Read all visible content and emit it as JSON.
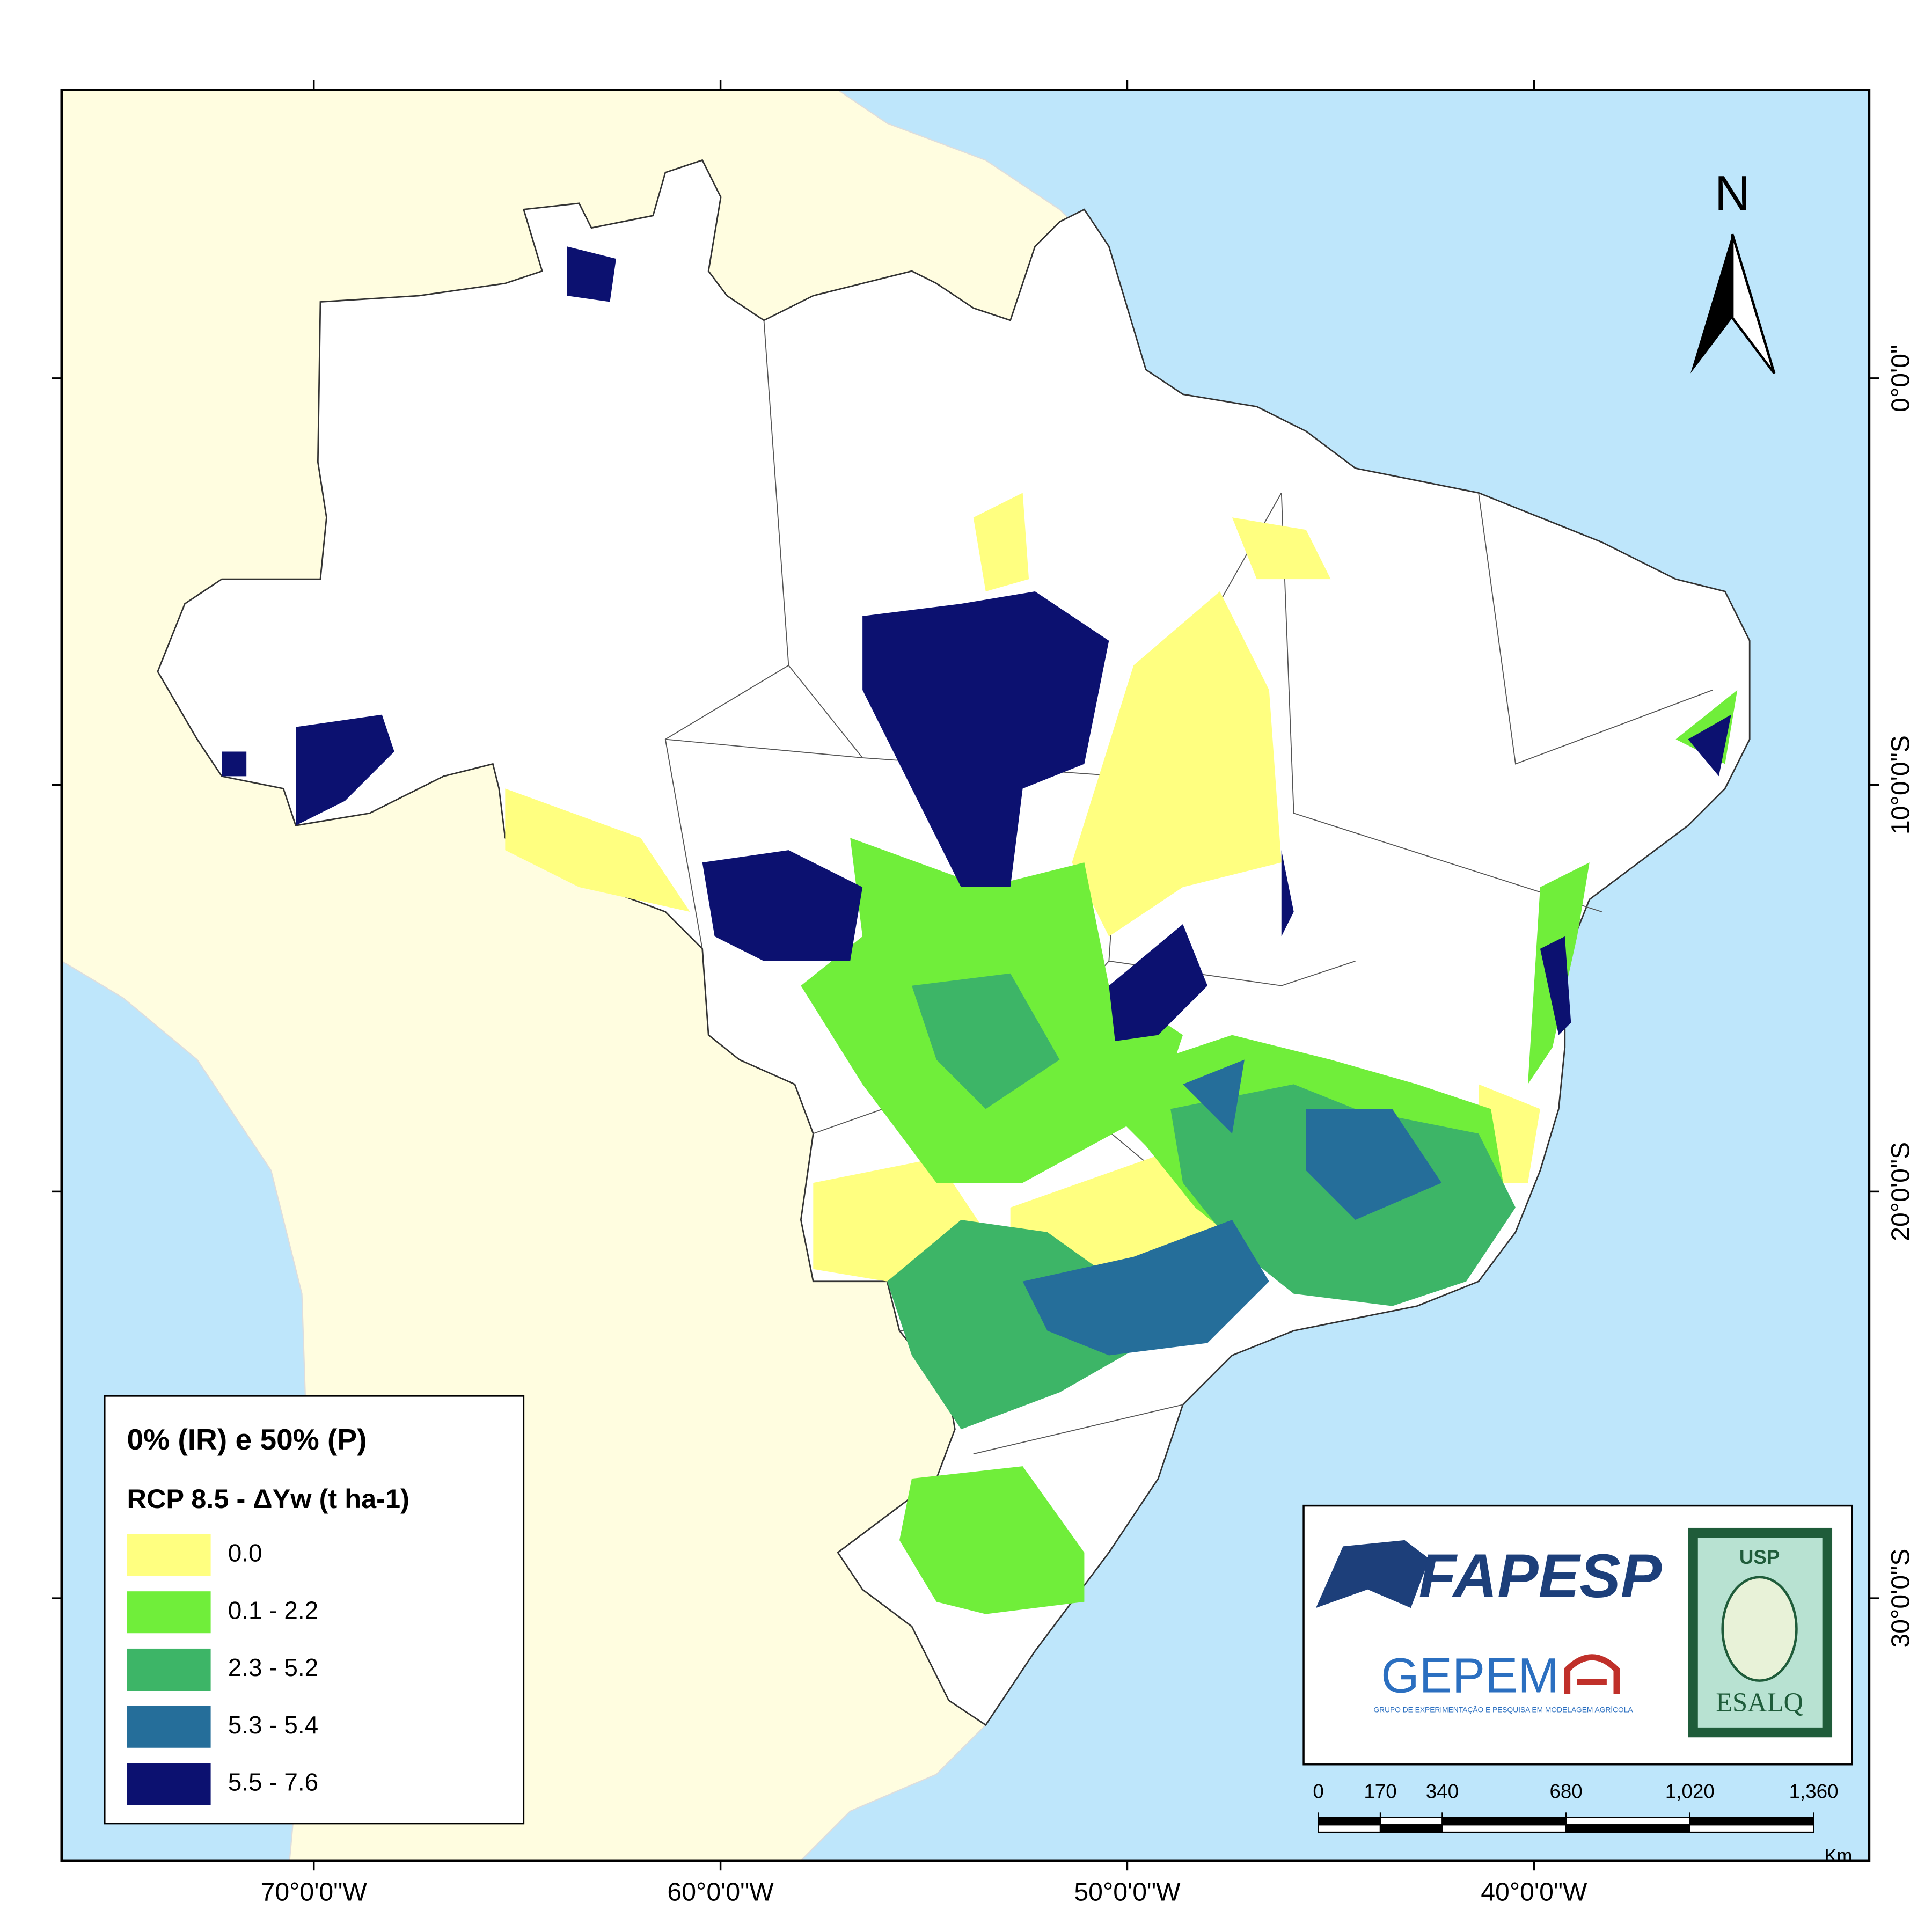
{
  "legend": {
    "title": "0% (IR) e 50% (P)",
    "subtitle": "RCP 8.5 - ΔYw (t ha-1)",
    "items": [
      {
        "label": "0.0",
        "color": "#ffff80"
      },
      {
        "label": "0.1 - 2.2",
        "color": "#70ee3a"
      },
      {
        "label": "2.3 - 5.2",
        "color": "#3db567"
      },
      {
        "label": "5.3 - 5.4",
        "color": "#256e9a"
      },
      {
        "label": "5.5 - 7.6",
        "color": "#0c1170"
      }
    ]
  },
  "axes": {
    "xlim": [
      -76.2,
      -31.76
    ],
    "ylim": [
      -36.45,
      7.09
    ],
    "xticks": [
      {
        "value": -70,
        "label": "70°0'0\"W"
      },
      {
        "value": -60,
        "label": "60°0'0\"W"
      },
      {
        "value": -50,
        "label": "50°0'0\"W"
      },
      {
        "value": -40,
        "label": "40°0'0\"W"
      }
    ],
    "yticks": [
      {
        "value": 0,
        "label": "0°0'0\""
      },
      {
        "value": -10,
        "label": "10°0'0\"S"
      },
      {
        "value": -20,
        "label": "20°0'0\"S"
      },
      {
        "value": -30,
        "label": "30°0'0\"S"
      }
    ]
  },
  "north_arrow": "N",
  "logos": {
    "fapesp": "FAPESP",
    "gepema": "GEPEM",
    "gepema_subtitle": "GRUPO DE EXPERIMENTAÇÃO E PESQUISA EM MODELAGEM AGRÍCOLA",
    "usp": "USP",
    "esalq": "ESALQ"
  },
  "scale_bar": {
    "unit": "Km",
    "ticks": [
      0,
      170,
      340,
      680,
      {
        "value": 1020,
        "label": "1,020"
      },
      {
        "value": 1360,
        "label": "1,360"
      }
    ]
  }
}
